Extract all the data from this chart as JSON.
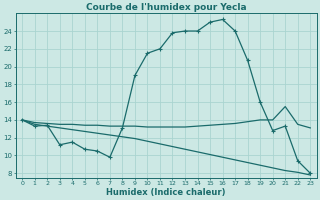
{
  "title": "Courbe de l'humidex pour Yecla",
  "xlabel": "Humidex (Indice chaleur)",
  "bg_color": "#cce8e4",
  "grid_color": "#aad4d0",
  "line_color": "#1a6b6b",
  "xlim": [
    -0.5,
    23.5
  ],
  "ylim": [
    7.5,
    26.0
  ],
  "yticks": [
    8,
    10,
    12,
    14,
    16,
    18,
    20,
    22,
    24
  ],
  "xticks": [
    0,
    1,
    2,
    3,
    4,
    5,
    6,
    7,
    8,
    9,
    10,
    11,
    12,
    13,
    14,
    15,
    16,
    17,
    18,
    19,
    20,
    21,
    22,
    23
  ],
  "curve1_x": [
    0,
    1,
    2,
    3,
    4,
    5,
    6,
    7,
    8,
    9,
    10,
    11,
    12,
    13,
    14,
    15,
    16,
    17,
    18,
    19,
    20,
    21,
    22,
    23
  ],
  "curve1_y": [
    14.0,
    13.3,
    13.4,
    11.2,
    11.5,
    10.7,
    10.5,
    9.8,
    13.1,
    19.0,
    21.5,
    22.0,
    23.8,
    24.0,
    24.0,
    25.0,
    25.3,
    24.0,
    20.7,
    16.0,
    12.8,
    13.3,
    9.4,
    8.0
  ],
  "curve2_x": [
    0,
    1,
    2,
    3,
    4,
    5,
    6,
    7,
    8,
    9,
    10,
    11,
    12,
    13,
    14,
    15,
    16,
    17,
    18,
    19,
    20,
    21,
    22,
    23
  ],
  "curve2_y": [
    14.0,
    13.7,
    13.6,
    13.5,
    13.5,
    13.4,
    13.4,
    13.3,
    13.3,
    13.3,
    13.2,
    13.2,
    13.2,
    13.2,
    13.3,
    13.4,
    13.5,
    13.6,
    13.8,
    14.0,
    14.0,
    15.5,
    13.5,
    13.1
  ],
  "curve3_x": [
    0,
    1,
    2,
    3,
    4,
    5,
    6,
    7,
    8,
    9,
    10,
    11,
    12,
    13,
    14,
    15,
    16,
    17,
    18,
    19,
    20,
    21,
    22,
    23
  ],
  "curve3_y": [
    14.0,
    13.5,
    13.3,
    13.1,
    12.9,
    12.7,
    12.5,
    12.3,
    12.1,
    11.9,
    11.6,
    11.3,
    11.0,
    10.7,
    10.4,
    10.1,
    9.8,
    9.5,
    9.2,
    8.9,
    8.6,
    8.3,
    8.1,
    7.8
  ]
}
